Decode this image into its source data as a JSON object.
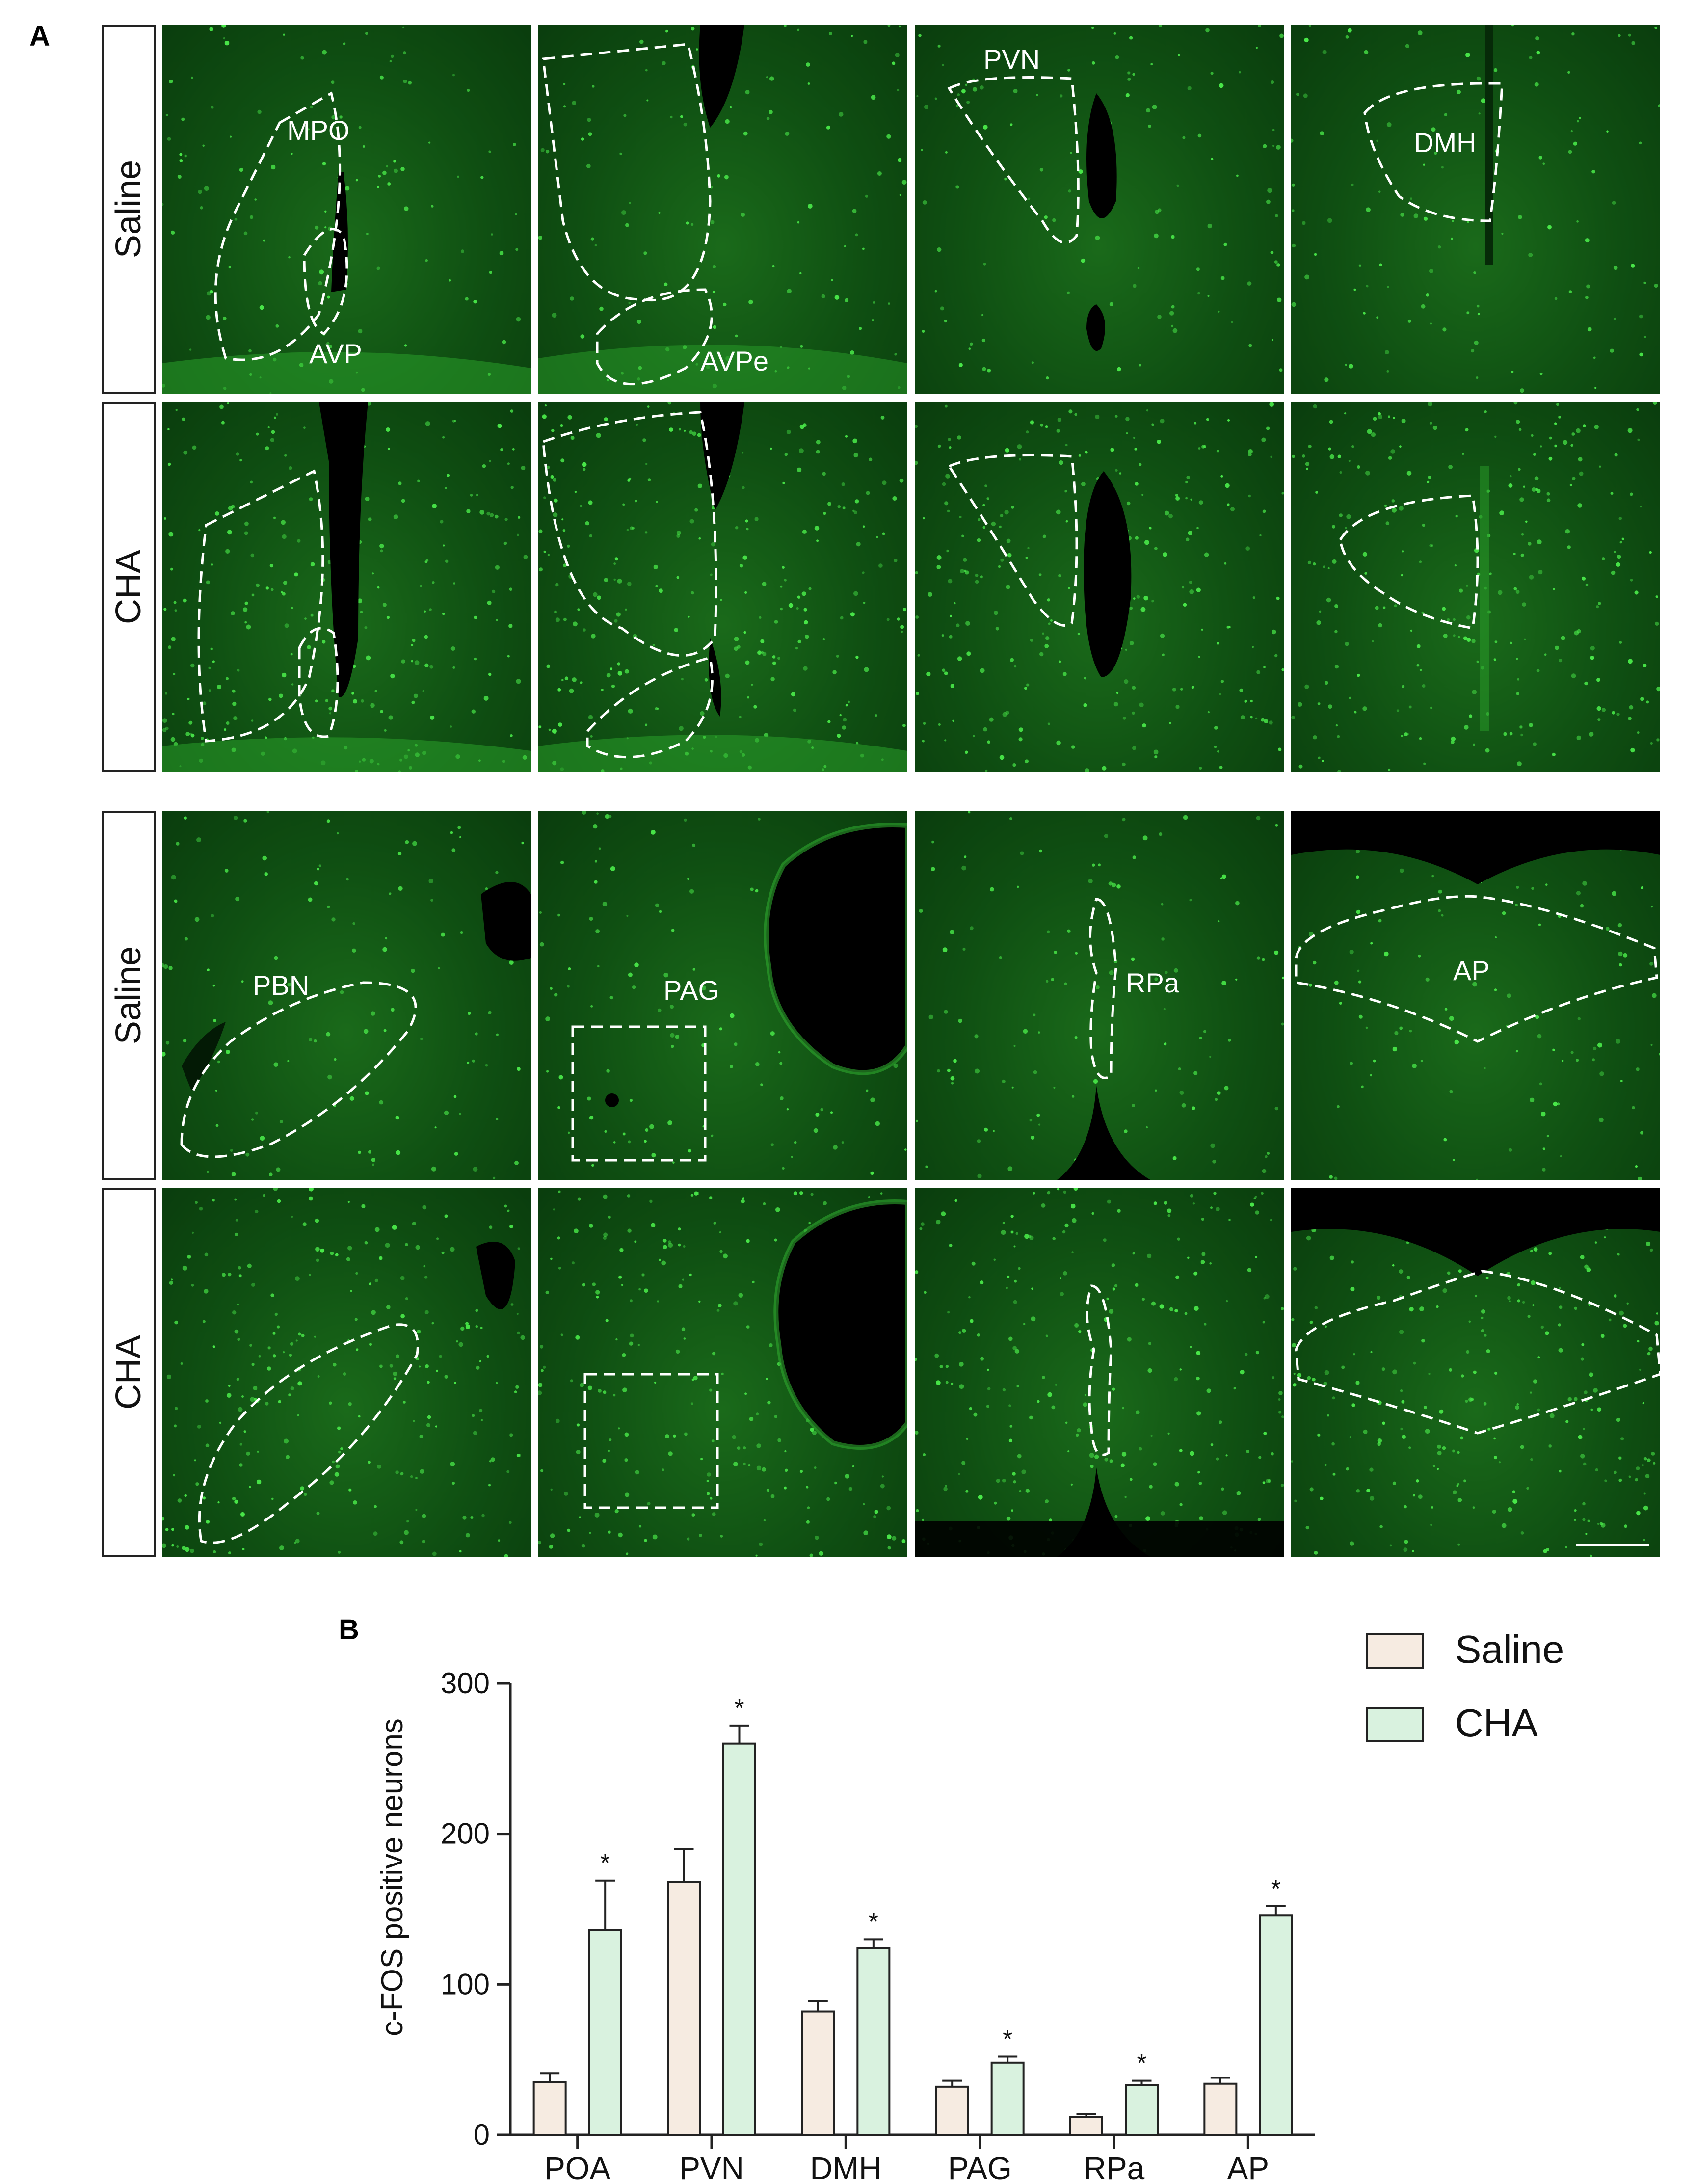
{
  "panel_a": {
    "letter": "A",
    "row_labels": [
      "Saline",
      "CHA",
      "Saline",
      "CHA"
    ],
    "region_labels": {
      "r0": [
        "MPO",
        "AVP",
        "AVPe",
        "PVN",
        "DMH"
      ],
      "r2": [
        "PBN",
        "PAG",
        "RPa",
        "AP"
      ]
    }
  },
  "panel_b": {
    "letter": "B"
  },
  "colors": {
    "saline_fill": "#f6ebe1",
    "cha_fill": "#d9f2df",
    "tissue": "#0f4f12",
    "dots": "#49e849"
  },
  "chart_data": {
    "type": "bar",
    "categories": [
      "POA",
      "PVN",
      "DMH",
      "PAG",
      "RPa",
      "AP"
    ],
    "ylabel": "c-FOS positive neurons",
    "ylim": [
      0,
      300
    ],
    "yticks": [
      0,
      100,
      200,
      300
    ],
    "legend_position": "top-right",
    "significance_marker": "*",
    "series": [
      {
        "name": "Saline",
        "values": [
          35,
          168,
          82,
          32,
          12,
          34
        ],
        "errors": [
          6,
          22,
          7,
          4,
          2,
          4
        ],
        "significant": [
          false,
          false,
          false,
          false,
          false,
          false
        ]
      },
      {
        "name": "CHA",
        "values": [
          136,
          260,
          124,
          48,
          33,
          146
        ],
        "errors": [
          33,
          12,
          6,
          4,
          3,
          6
        ],
        "significant": [
          true,
          true,
          true,
          true,
          true,
          true
        ]
      }
    ]
  }
}
